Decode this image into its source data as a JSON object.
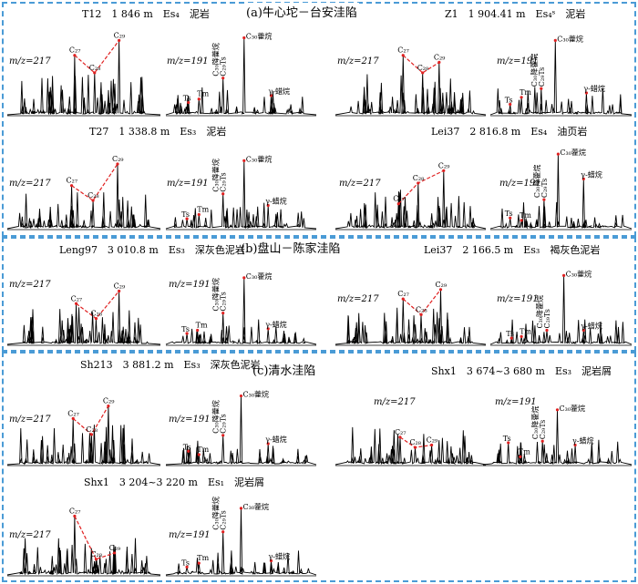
{
  "regions": [
    {
      "title": "(a)牛心坨－台安洼陷"
    },
    {
      "title": "(b)盘山－陈家洼陷"
    },
    {
      "title": "(c)清水洼陷"
    }
  ],
  "colors": {
    "frame": "#4a9bd6",
    "peak_marker": "#e02020",
    "trace": "#000000"
  },
  "panels": [
    {
      "title": "T12　1 846 m　Es₄　泥岩",
      "mz_left": "m/z=217",
      "mz_right": "m/z=191"
    },
    {
      "title": "Z1　1 904.41 m　Es₄ˢ　泥岩",
      "mz_left": "m/z=217",
      "mz_right": "m/z=191"
    },
    {
      "title": "T27　1 338.8 m　Es₃　泥岩",
      "mz_left": "m/z=217",
      "mz_right": "m/z=191"
    },
    {
      "title": "Lei37　2 816.8 m　Es₄　油页岩",
      "mz_left": "m/z=217",
      "mz_right": "m/z=191"
    },
    {
      "title": "Leng97　3 010.8 m　Es₃　深灰色泥岩",
      "mz_left": "m/z=217",
      "mz_right": "m/z=191"
    },
    {
      "title": "Lei37　2 166.5 m　Es₃　褐灰色泥岩",
      "mz_left": "m/z=217",
      "mz_right": "m/z=191"
    },
    {
      "title": "Sh213　3 881.2 m　Es₃　深灰色泥岩",
      "mz_left": "m/z=217",
      "mz_right": "m/z=191"
    },
    {
      "title": "Shx1　3 674~3 680 m　Es₃　泥岩屑",
      "mz_left": "m/z=217",
      "mz_right": "m/z=191"
    },
    {
      "title": "Shx1　3 204~3 220 m　Es₁　泥岩屑",
      "mz_left": "m/z=217",
      "mz_right": "m/z=191"
    }
  ],
  "peak_labels": {
    "c27": "C₂₇",
    "c28": "C₂₈",
    "c29": "C₂₉",
    "ts": "Ts",
    "tm": "Tm",
    "c29ts": "C₂₉Ts",
    "c30": "C₃₀藿烷",
    "c30d": "C₃₀降藿烷",
    "gam": "γ-蜡烷"
  }
}
